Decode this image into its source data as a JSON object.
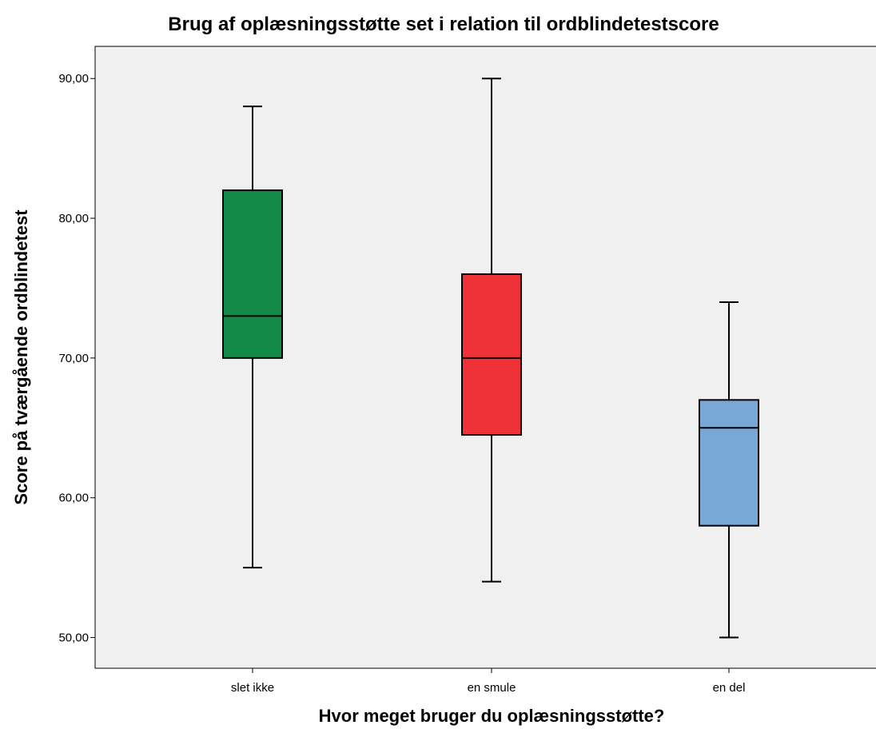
{
  "chart_data": {
    "type": "boxplot",
    "title": "Brug af oplæsningsstøtte set i relation til ordblindetestscore",
    "xlabel": "Hvor meget bruger du oplæsningsstøtte?",
    "ylabel": "Score på tværgående ordblindetest",
    "ylim": [
      47.8,
      92.3
    ],
    "yticks": [
      50,
      60,
      70,
      80,
      90
    ],
    "ytick_labels": [
      "50,00",
      "60,00",
      "70,00",
      "80,00",
      "90,00"
    ],
    "grid": false,
    "categories": [
      "slet ikke",
      "en smule",
      "en del"
    ],
    "boxes": [
      {
        "category": "slet ikke",
        "min": 55,
        "q1": 70,
        "median": 73,
        "q3": 82,
        "max": 88,
        "color": "#138a47"
      },
      {
        "category": "en smule",
        "min": 54,
        "q1": 64.5,
        "median": 70,
        "q3": 76,
        "max": 90,
        "color": "#ef3238"
      },
      {
        "category": "en del",
        "min": 50,
        "q1": 58,
        "median": 65,
        "q3": 67,
        "max": 74,
        "color": "#7aa8d6"
      }
    ],
    "plot_background": "#f0f0f0"
  }
}
